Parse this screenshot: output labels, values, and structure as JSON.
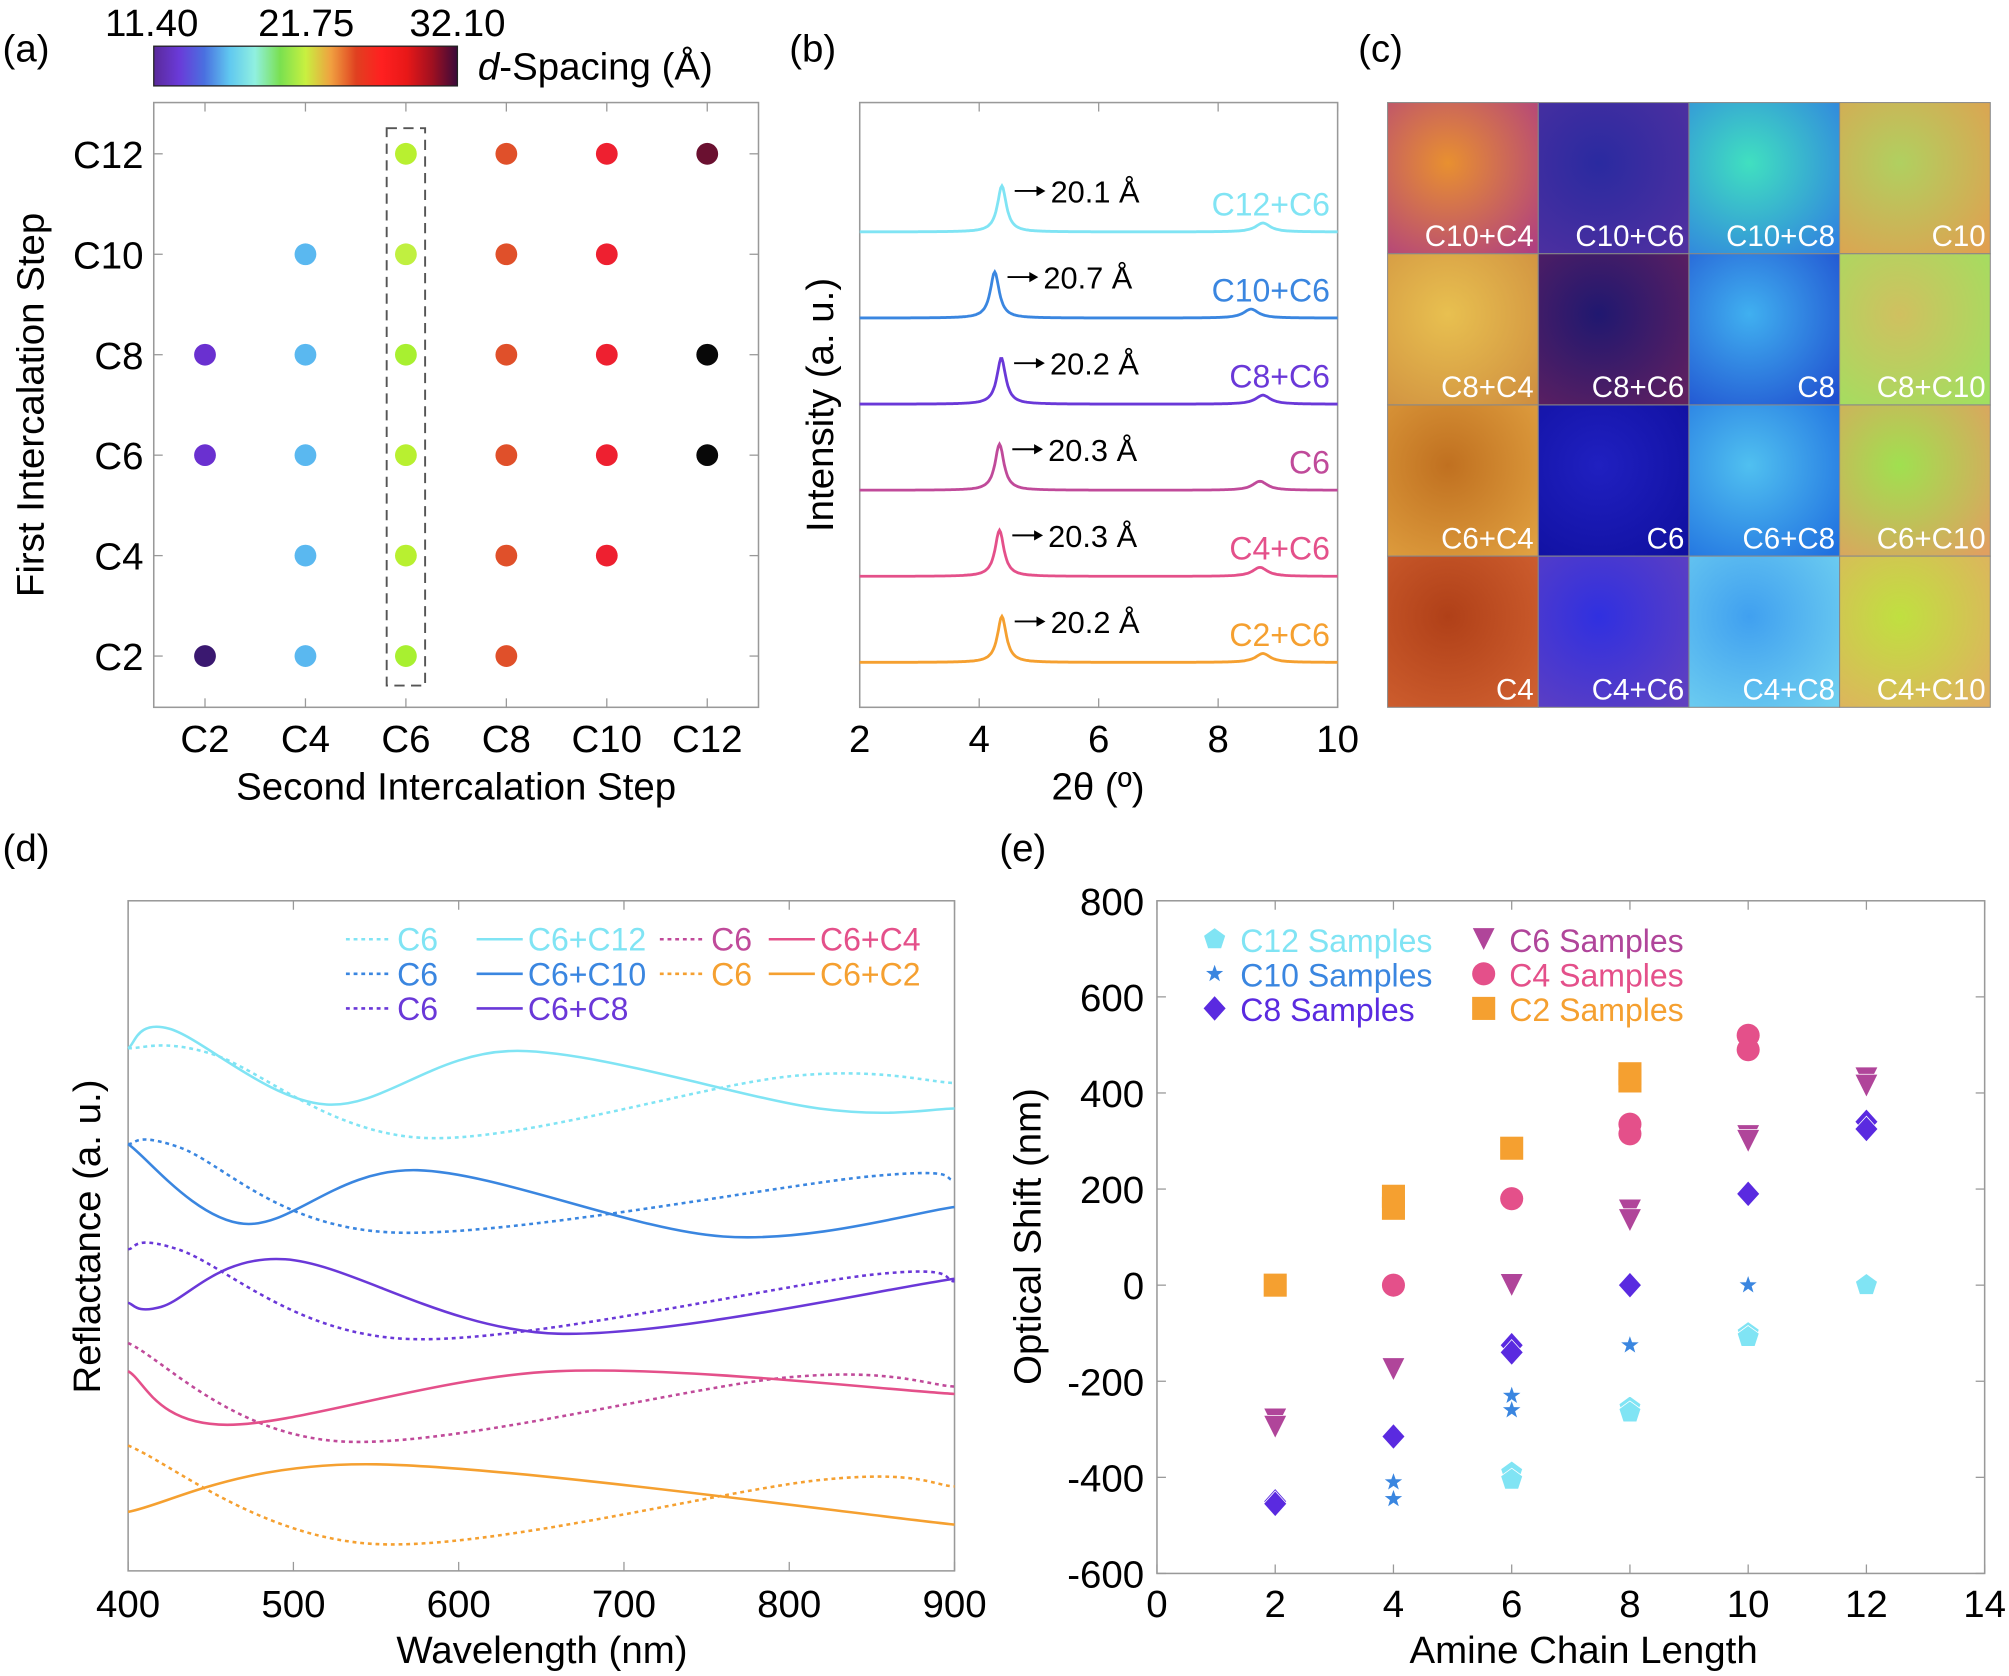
{
  "chart_data": [
    {
      "panel_label": "(a)",
      "type": "scatter",
      "xlabel": "Second Intercalation Step",
      "ylabel": "First Intercalation Step",
      "x_categories": [
        "C2",
        "C4",
        "C6",
        "C8",
        "C10",
        "C12"
      ],
      "y_categories": [
        "C2",
        "C4",
        "C6",
        "C8",
        "C10",
        "C12"
      ],
      "colorbar": {
        "ticks": [
          "11.40",
          "21.75",
          "32.10"
        ],
        "label_italic": "d",
        "label_rest": "-Spacing (Å)",
        "colors": [
          "#5a2a9a",
          "#6a3ad8",
          "#4a70e0",
          "#60c8f0",
          "#90f0e0",
          "#7ae050",
          "#c8f040",
          "#f0a040",
          "#e04020",
          "#ff2020",
          "#e81818",
          "#a01020",
          "#3a0a3a"
        ]
      },
      "highlight_column": "C6",
      "points": [
        {
          "x": "C2",
          "y": "C12",
          "color": null
        },
        {
          "x": "C6",
          "y": "C12",
          "color": "#b8f030"
        },
        {
          "x": "C8",
          "y": "C12",
          "color": "#e0502a"
        },
        {
          "x": "C10",
          "y": "C12",
          "color": "#ee2030"
        },
        {
          "x": "C12",
          "y": "C12",
          "color": "#6a1030"
        },
        {
          "x": "C4",
          "y": "C10",
          "color": "#5ab8f0"
        },
        {
          "x": "C6",
          "y": "C10",
          "color": "#c0f040"
        },
        {
          "x": "C8",
          "y": "C10",
          "color": "#e0502a"
        },
        {
          "x": "C10",
          "y": "C10",
          "color": "#ee2030"
        },
        {
          "x": "C2",
          "y": "C8",
          "color": "#6a30d0"
        },
        {
          "x": "C4",
          "y": "C8",
          "color": "#5ab8f0"
        },
        {
          "x": "C6",
          "y": "C8",
          "color": "#a8f030"
        },
        {
          "x": "C8",
          "y": "C8",
          "color": "#e0502a"
        },
        {
          "x": "C10",
          "y": "C8",
          "color": "#ee2030"
        },
        {
          "x": "C12",
          "y": "C8",
          "color": "#080808"
        },
        {
          "x": "C2",
          "y": "C6",
          "color": "#6a30d0"
        },
        {
          "x": "C4",
          "y": "C6",
          "color": "#5ab8f0"
        },
        {
          "x": "C6",
          "y": "C6",
          "color": "#b8f030"
        },
        {
          "x": "C8",
          "y": "C6",
          "color": "#e0502a"
        },
        {
          "x": "C10",
          "y": "C6",
          "color": "#ee2030"
        },
        {
          "x": "C12",
          "y": "C6",
          "color": "#080808"
        },
        {
          "x": "C4",
          "y": "C4",
          "color": "#5ab8f0"
        },
        {
          "x": "C6",
          "y": "C4",
          "color": "#b8f030"
        },
        {
          "x": "C8",
          "y": "C4",
          "color": "#e0502a"
        },
        {
          "x": "C10",
          "y": "C4",
          "color": "#ee2030"
        },
        {
          "x": "C2",
          "y": "C2",
          "color": "#3a1870"
        },
        {
          "x": "C4",
          "y": "C2",
          "color": "#5ab8f0"
        },
        {
          "x": "C6",
          "y": "C2",
          "color": "#a8f030"
        },
        {
          "x": "C8",
          "y": "C2",
          "color": "#e0502a"
        }
      ]
    },
    {
      "panel_label": "(b)",
      "type": "line",
      "xlabel": "2θ (º)",
      "ylabel": "Intensity (a. u.)",
      "xlim": [
        2,
        10
      ],
      "xticks": [
        "2",
        "4",
        "6",
        "8",
        "10"
      ],
      "series": [
        {
          "name": "C12+C6",
          "color": "#80e4f4",
          "peak": 4.38,
          "peak2": 8.75,
          "annotation": "20.1 Å"
        },
        {
          "name": "C10+C6",
          "color": "#3a86e0",
          "peak": 4.26,
          "peak2": 8.55,
          "annotation": "20.7 Å"
        },
        {
          "name": "C8+C6",
          "color": "#6a38d8",
          "peak": 4.37,
          "peak2": 8.75,
          "annotation": "20.2 Å"
        },
        {
          "name": "C6",
          "color": "#c04a9a",
          "peak": 4.34,
          "peak2": 8.7,
          "annotation": "20.3 Å"
        },
        {
          "name": "C4+C6",
          "color": "#e4508a",
          "peak": 4.34,
          "peak2": 8.7,
          "annotation": "20.3 Å"
        },
        {
          "name": "C2+C6",
          "color": "#f5a030",
          "peak": 4.38,
          "peak2": 8.75,
          "annotation": "20.2 Å"
        }
      ]
    },
    {
      "panel_label": "(c)",
      "type": "image_grid",
      "tiles": [
        {
          "label": "C10+C4",
          "c1": "#e89030",
          "c2": "#b04080"
        },
        {
          "label": "C10+C6",
          "c1": "#2a2aa0",
          "c2": "#5030a0"
        },
        {
          "label": "C10+C8",
          "c1": "#40e0c0",
          "c2": "#3080e0"
        },
        {
          "label": "C10",
          "c1": "#b0d060",
          "c2": "#e0a050"
        },
        {
          "label": "C8+C4",
          "c1": "#e8c050",
          "c2": "#d09040"
        },
        {
          "label": "C8+C6",
          "c1": "#201870",
          "c2": "#602060"
        },
        {
          "label": "C8",
          "c1": "#40b0f0",
          "c2": "#2050d0"
        },
        {
          "label": "C8+C10",
          "c1": "#d0c060",
          "c2": "#a0e060"
        },
        {
          "label": "C6+C4",
          "c1": "#c07020",
          "c2": "#e0a040"
        },
        {
          "label": "C6",
          "c1": "#2020c0",
          "c2": "#1010a0"
        },
        {
          "label": "C6+C8",
          "c1": "#50c0f0",
          "c2": "#2070e0"
        },
        {
          "label": "C6+C10",
          "c1": "#a0e050",
          "c2": "#e0a060"
        },
        {
          "label": "C4",
          "c1": "#b04018",
          "c2": "#d06030"
        },
        {
          "label": "C4+C6",
          "c1": "#3030e0",
          "c2": "#6040c0"
        },
        {
          "label": "C4+C8",
          "c1": "#40a0f0",
          "c2": "#70d0f0"
        },
        {
          "label": "C4+C10",
          "c1": "#c0e040",
          "c2": "#e0b060"
        }
      ]
    },
    {
      "panel_label": "(d)",
      "type": "line",
      "xlabel": "Wavelength (nm)",
      "ylabel": "Reflactance (a. u.)",
      "xlim": [
        400,
        900
      ],
      "xticks": [
        "400",
        "500",
        "600",
        "700",
        "800",
        "900"
      ],
      "series": [
        {
          "name": "C6",
          "style": "dotted",
          "color": "#80e4f4",
          "points": [
            [
              400,
              78
            ],
            [
              450,
              77.2
            ],
            [
              580,
              64.6
            ],
            [
              800,
              73.8
            ],
            [
              900,
              72.8
            ]
          ]
        },
        {
          "name": "C6+C12",
          "style": "solid",
          "color": "#80e4f4",
          "points": [
            [
              400,
              78
            ],
            [
              425,
              80.9
            ],
            [
              520,
              69.6
            ],
            [
              636,
              77.6
            ],
            [
              818,
              69
            ],
            [
              900,
              69
            ]
          ]
        },
        {
          "name": "C6",
          "style": "dotted",
          "color": "#c04a9a",
          "points": [
            [
              400,
              34
            ],
            [
              530,
              19.3
            ],
            [
              800,
              28.9
            ],
            [
              900,
              27.5
            ]
          ]
        },
        {
          "name": "C6+C4",
          "style": "solid",
          "color": "#e4508a",
          "points": [
            [
              400,
              29.8
            ],
            [
              460,
              21.8
            ],
            [
              660,
              29.8
            ],
            [
              900,
              26.4
            ]
          ]
        },
        {
          "name": "C6",
          "style": "dotted",
          "color": "#3a86e0",
          "points": [
            [
              400,
              63.7
            ],
            [
              430,
              63.3
            ],
            [
              560,
              50.5
            ],
            [
              850,
              58.9
            ],
            [
              900,
              58.3
            ]
          ]
        },
        {
          "name": "C6+C10",
          "style": "solid",
          "color": "#3a86e0",
          "points": [
            [
              400,
              63.7
            ],
            [
              470,
              51.8
            ],
            [
              575,
              59.8
            ],
            [
              760,
              49.9
            ],
            [
              900,
              54.3
            ]
          ]
        },
        {
          "name": "C6",
          "style": "dotted",
          "color": "#f5a030",
          "points": [
            [
              400,
              18.7
            ],
            [
              550,
              4
            ],
            [
              820,
              13.6
            ],
            [
              900,
              12.6
            ]
          ]
        },
        {
          "name": "C6+C2",
          "style": "solid",
          "color": "#f5a030",
          "points": [
            [
              400,
              8.8
            ],
            [
              550,
              15.9
            ],
            [
              900,
              6.9
            ]
          ]
        },
        {
          "name": "C6",
          "style": "dotted",
          "color": "#6a38d8",
          "points": [
            [
              400,
              48
            ],
            [
              430,
              48
            ],
            [
              570,
              34.6
            ],
            [
              850,
              44.2
            ],
            [
              900,
              43.2
            ]
          ]
        },
        {
          "name": "C6+C8",
          "style": "solid",
          "color": "#6a38d8",
          "points": [
            [
              400,
              40
            ],
            [
              420,
              39.4
            ],
            [
              495,
              46.5
            ],
            [
              660,
              35.4
            ],
            [
              900,
              43.6
            ]
          ]
        }
      ]
    },
    {
      "panel_label": "(e)",
      "type": "scatter",
      "xlabel": "Amine Chain Length",
      "ylabel": "Optical Shift (nm)",
      "xlim": [
        0,
        14
      ],
      "ylim": [
        -600,
        800
      ],
      "xticks": [
        "0",
        "2",
        "4",
        "6",
        "8",
        "10",
        "12",
        "14"
      ],
      "yticks": [
        "-600",
        "-400",
        "-200",
        "0",
        "200",
        "400",
        "600",
        "800"
      ],
      "series": [
        {
          "name": "C12 Samples",
          "marker": "pentagon",
          "color": "#80e4f4",
          "points": [
            [
              6,
              -390
            ],
            [
              6,
              -405
            ],
            [
              8,
              -255
            ],
            [
              8,
              -265
            ],
            [
              10,
              -100
            ],
            [
              10,
              -108
            ],
            [
              12,
              0
            ]
          ]
        },
        {
          "name": "C6 Samples",
          "marker": "triangle-down",
          "color": "#b0459a",
          "points": [
            [
              2,
              -280
            ],
            [
              2,
              -295
            ],
            [
              4,
              -175
            ],
            [
              6,
              0
            ],
            [
              8,
              155
            ],
            [
              8,
              135
            ],
            [
              10,
              310
            ],
            [
              10,
              300
            ],
            [
              12,
              430
            ],
            [
              12,
              415
            ]
          ]
        },
        {
          "name": "C10 Samples",
          "marker": "star",
          "color": "#3a86e0",
          "points": [
            [
              4,
              -410
            ],
            [
              4,
              -445
            ],
            [
              6,
              -230
            ],
            [
              6,
              -260
            ],
            [
              8,
              -125
            ],
            [
              10,
              0
            ]
          ]
        },
        {
          "name": "C4 Samples",
          "marker": "circle",
          "color": "#e4508a",
          "points": [
            [
              4,
              0
            ],
            [
              6,
              180
            ],
            [
              8,
              335
            ],
            [
              8,
              315
            ],
            [
              10,
              520
            ],
            [
              10,
              490
            ]
          ]
        },
        {
          "name": "C8 Samples",
          "marker": "diamond",
          "color": "#5a2ae0",
          "points": [
            [
              2,
              -450
            ],
            [
              2,
              -455
            ],
            [
              4,
              -315
            ],
            [
              6,
              -125
            ],
            [
              6,
              -140
            ],
            [
              8,
              0
            ],
            [
              10,
              190
            ],
            [
              12,
              340
            ],
            [
              12,
              325
            ]
          ]
        },
        {
          "name": "C2 Samples",
          "marker": "square",
          "color": "#f5a030",
          "points": [
            [
              2,
              0
            ],
            [
              4,
              185
            ],
            [
              4,
              160
            ],
            [
              6,
              285
            ],
            [
              8,
              440
            ],
            [
              8,
              425
            ]
          ]
        }
      ]
    }
  ]
}
